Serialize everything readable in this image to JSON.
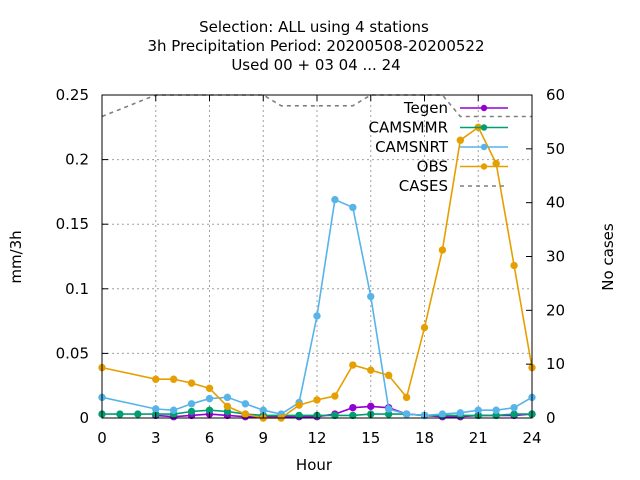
{
  "chart_data": {
    "type": "line",
    "title_lines": [
      "Selection: ALL using     4 stations",
      "3h Precipitation   Period: 20200508-20200522",
      "Used  00 + 03 04 ... 24"
    ],
    "xlabel": "Hour",
    "ylabel": "mm/3h",
    "y2label": "No cases",
    "xlim": [
      0,
      24
    ],
    "ylim": [
      0,
      0.25
    ],
    "y2lim": [
      0,
      60
    ],
    "xticks": [
      0,
      3,
      6,
      9,
      12,
      15,
      18,
      21,
      24
    ],
    "yticks": [
      "0",
      "0.05",
      "0.1",
      "0.15",
      "0.2",
      "0.25"
    ],
    "y2ticks": [
      "0",
      "10",
      "20",
      "30",
      "40",
      "50",
      "60"
    ],
    "grid": true,
    "legend_position": "top-right",
    "series": [
      {
        "name": "Tegen",
        "color": "#9400d3",
        "axis": "y1",
        "marker": "circle",
        "x": [
          3,
          4,
          5,
          6,
          7,
          8,
          9,
          10,
          11,
          12,
          13,
          14,
          15,
          16,
          17,
          18,
          19,
          20,
          21,
          22,
          23,
          24
        ],
        "y": [
          0.002,
          0.001,
          0.002,
          0.003,
          0.002,
          0.001,
          0.001,
          0.001,
          0.001,
          0.001,
          0.003,
          0.008,
          0.009,
          0.008,
          0.003,
          0.002,
          0.001,
          0.001,
          0.002,
          0.002,
          0.002,
          0.003
        ]
      },
      {
        "name": "CAMSMMR",
        "color": "#009e73",
        "axis": "y1",
        "marker": "circle",
        "x": [
          0,
          1,
          2,
          3,
          4,
          5,
          6,
          7,
          8,
          9,
          10,
          11,
          12,
          13,
          14,
          15,
          16,
          17,
          18,
          19,
          20,
          21,
          22,
          23,
          24
        ],
        "y": [
          0.003,
          0.003,
          0.003,
          0.003,
          0.003,
          0.005,
          0.006,
          0.005,
          0.003,
          0.002,
          0.002,
          0.002,
          0.002,
          0.002,
          0.002,
          0.003,
          0.003,
          0.003,
          0.002,
          0.002,
          0.002,
          0.002,
          0.002,
          0.003,
          0.003
        ]
      },
      {
        "name": "CAMSNRT",
        "color": "#56b4e9",
        "axis": "y1",
        "marker": "circle",
        "x": [
          0,
          3,
          4,
          5,
          6,
          7,
          8,
          9,
          10,
          11,
          12,
          13,
          14,
          15,
          16,
          17,
          18,
          19,
          20,
          21,
          22,
          23,
          24
        ],
        "y": [
          0.016,
          0.007,
          0.006,
          0.011,
          0.015,
          0.016,
          0.011,
          0.006,
          0.003,
          0.012,
          0.079,
          0.169,
          0.163,
          0.094,
          0.007,
          0.003,
          0.002,
          0.003,
          0.004,
          0.006,
          0.006,
          0.008,
          0.016
        ]
      },
      {
        "name": "OBS",
        "color": "#e69f00",
        "axis": "y1",
        "marker": "circle",
        "x": [
          0,
          3,
          4,
          5,
          6,
          7,
          8,
          9,
          10,
          11,
          12,
          13,
          14,
          15,
          16,
          17,
          18,
          19,
          20,
          21,
          22,
          23,
          24
        ],
        "y": [
          0.039,
          0.03,
          0.03,
          0.027,
          0.023,
          0.009,
          0.003,
          0.0,
          0.0,
          0.01,
          0.014,
          0.017,
          0.041,
          0.037,
          0.033,
          0.016,
          0.07,
          0.13,
          0.215,
          0.225,
          0.197,
          0.118,
          0.039
        ]
      },
      {
        "name": "CASES",
        "color": "#808080",
        "axis": "y2",
        "marker": "none",
        "dashed": true,
        "x": [
          0,
          3,
          9,
          10,
          14,
          15,
          18,
          19,
          20,
          24
        ],
        "y": [
          56,
          60,
          60,
          58,
          58,
          60,
          60,
          60,
          56,
          56
        ]
      }
    ]
  }
}
